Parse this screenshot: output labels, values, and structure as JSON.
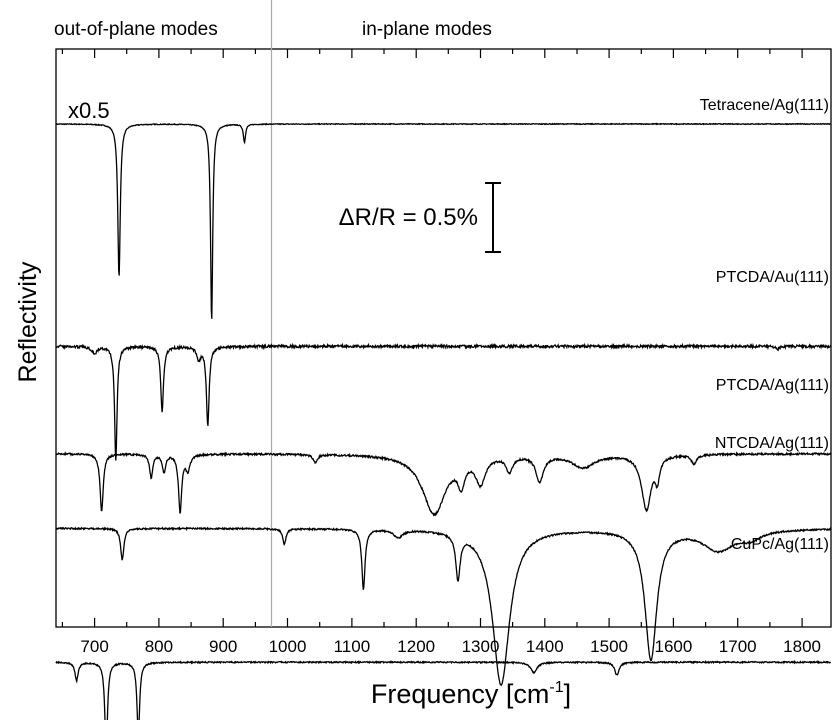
{
  "chart_data": {
    "type": "line",
    "title": "",
    "xlabel": "Frequency [cm",
    "xlabel_sup": "-1",
    "xlabel_close": "]",
    "ylabel": "Reflectivity",
    "xlim": [
      640,
      1845
    ],
    "xticks": [
      700,
      800,
      900,
      1000,
      1100,
      1200,
      1300,
      1400,
      1500,
      1600,
      1700,
      1800
    ],
    "region_divider_x": 975,
    "region_labels": {
      "left": "out-of-plane modes",
      "right": "in-plane modes"
    },
    "scale_bar_label": "ΔR/R = 0.5%",
    "scale_bar_value_percent": 0.5,
    "scale_note": "x0.5",
    "series": [
      {
        "name": "Tetracene/Ag(111)",
        "baseline": 0.0,
        "noise": 0.015,
        "bands": [
          {
            "x": 738,
            "depth": 5.9,
            "width": 2.3
          },
          {
            "x": 882,
            "depth": 7.6,
            "width": 2.0
          },
          {
            "x": 933,
            "depth": 0.7,
            "width": 2.0
          }
        ]
      },
      {
        "name": "PTCDA/Au(111)",
        "baseline": -8.55,
        "noise": 0.05,
        "bands": [
          {
            "x": 733,
            "depth": 4.4,
            "width": 2.3
          },
          {
            "x": 805,
            "depth": 2.5,
            "width": 2.6
          },
          {
            "x": 876,
            "depth": 3.0,
            "width": 2.6
          },
          {
            "x": 862,
            "depth": 0.45,
            "width": 4.0
          },
          {
            "x": 700,
            "depth": 0.25,
            "width": 5.0
          },
          {
            "x": 1762,
            "depth": 0.12,
            "width": 3.0
          }
        ]
      },
      {
        "name": "PTCDA/Ag(111)",
        "baseline": -12.68,
        "noise": 0.035,
        "bands": [
          {
            "x": 711,
            "depth": 2.2,
            "width": 3.0
          },
          {
            "x": 788,
            "depth": 0.9,
            "width": 3.0
          },
          {
            "x": 808,
            "depth": 0.7,
            "width": 3.0
          },
          {
            "x": 833,
            "depth": 2.2,
            "width": 3.0
          },
          {
            "x": 845,
            "depth": 0.6,
            "width": 4.0
          },
          {
            "x": 1043,
            "depth": 0.3,
            "width": 4.0
          },
          {
            "x": 1228,
            "depth": 2.3,
            "width": 22.0
          },
          {
            "x": 1270,
            "depth": 0.9,
            "width": 6.0
          },
          {
            "x": 1300,
            "depth": 1.0,
            "width": 9.0
          },
          {
            "x": 1345,
            "depth": 0.6,
            "width": 6.0
          },
          {
            "x": 1392,
            "depth": 1.0,
            "width": 7.0
          },
          {
            "x": 1460,
            "depth": 0.5,
            "width": 22.0
          },
          {
            "x": 1558,
            "depth": 2.1,
            "width": 9.0
          },
          {
            "x": 1575,
            "depth": 0.8,
            "width": 4.0
          },
          {
            "x": 1632,
            "depth": 0.35,
            "width": 5.0
          }
        ]
      },
      {
        "name": "NTCDA/Ag(111)",
        "baseline": -15.55,
        "noise": 0.03,
        "bands": [
          {
            "x": 743,
            "depth": 1.2,
            "width": 3.0
          },
          {
            "x": 995,
            "depth": 0.6,
            "width": 3.0
          },
          {
            "x": 1118,
            "depth": 2.3,
            "width": 3.0
          },
          {
            "x": 1172,
            "depth": 0.3,
            "width": 8.0
          },
          {
            "x": 1265,
            "depth": 1.7,
            "width": 4.0
          },
          {
            "x": 1332,
            "depth": 6.0,
            "width": 16.0
          },
          {
            "x": 1565,
            "depth": 5.0,
            "width": 11.0
          },
          {
            "x": 1670,
            "depth": 0.8,
            "width": 30.0
          },
          {
            "x": 1720,
            "depth": 0.3,
            "width": 20.0
          }
        ]
      },
      {
        "name": "CuPc/Ag(111)",
        "baseline": -20.7,
        "noise": 0.025,
        "bands": [
          {
            "x": 672,
            "depth": 0.7,
            "width": 3.0
          },
          {
            "x": 718,
            "depth": 3.4,
            "width": 2.5
          },
          {
            "x": 768,
            "depth": 2.8,
            "width": 2.5
          },
          {
            "x": 1383,
            "depth": 0.4,
            "width": 6.0
          },
          {
            "x": 1512,
            "depth": 0.5,
            "width": 4.0
          }
        ]
      }
    ]
  }
}
